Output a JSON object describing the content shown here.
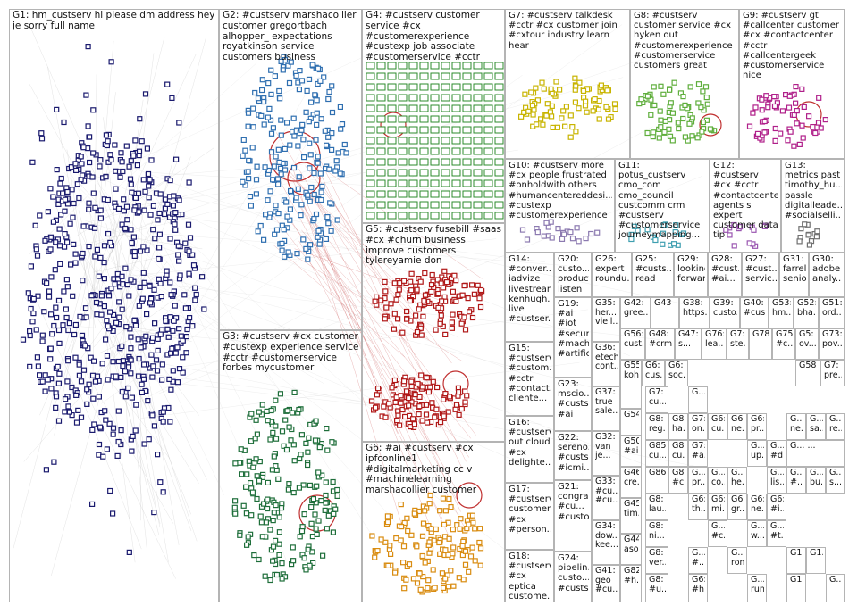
{
  "colors": {
    "g1": "#1a1a6e",
    "g2": "#2f6fb0",
    "g3": "#1e6e3a",
    "g4": "#2e8b2e",
    "g5": "#b01818",
    "g6": "#d98c10",
    "g7": "#c8b400",
    "g8": "#5fae3c",
    "g9": "#b0208a",
    "edge": "#9a9a9a",
    "edge_red": "#c03030"
  },
  "groups": [
    {
      "id": "G1",
      "label": "G1: hm_custserv hi please dm address hey je sorry full name"
    },
    {
      "id": "G2",
      "label": "G2: #custserv marshacollier customer gregortbach alhopper_ expectations royatkinson service customers business"
    },
    {
      "id": "G3",
      "label": "G3: #custserv #cx customer #custexp experience service #cctr #customerservice forbes mycustomer"
    },
    {
      "id": "G4",
      "label": "G4: #custserv customer service #cx #customerexperience #custexp job associate #customerservice #cctr"
    },
    {
      "id": "G5",
      "label": "G5: #custserv fusebill #saas #cx #churn business improve customers tylereyamie don"
    },
    {
      "id": "G6",
      "label": "G6: #ai #custserv #cx ipfconline1 #digitalmarketing cc v #machinelearning marshacollier customer"
    },
    {
      "id": "G7",
      "label": "G7: #custserv talkdesk #cctr #cx customer join #cxtour industry learn hear"
    },
    {
      "id": "G8",
      "label": "G8: #custserv customer service #cx hyken out #customerexperience #customerservice customers great"
    },
    {
      "id": "G9",
      "label": "G9: #custserv gt #callcenter customer #cx #contactcenter #cctr #callcentergeek #customerservice nice"
    },
    {
      "id": "G10",
      "label": "G10: #custserv more #cx people frustrated #onholdwith others #humancentereddesi... #custexp #customerexperience"
    },
    {
      "id": "G11",
      "label": "G11: potus_custserv cmo_com cmo_council custcomm crm #custserv #customerservice journeymapping..."
    },
    {
      "id": "G12",
      "label": "G12: #custserv #cx #cctr #contactcenter agents s expert customer data tip"
    },
    {
      "id": "G13",
      "label": "G13: metrics past timothy_hu... passle digitalleade... #socialselli..."
    },
    {
      "id": "G14",
      "label": "G14: #conver... iadvize livestreamli... kenhugh... live #custser..."
    },
    {
      "id": "G15",
      "label": "G15: #custserv #custom... #cctr #contact... cliente..."
    },
    {
      "id": "G16",
      "label": "G16: #custserv out cloud #cx delighte..."
    },
    {
      "id": "G17",
      "label": "G17: #custserv customer #cx #person..."
    },
    {
      "id": "G18",
      "label": "G18: #custserv #cx eptica custome..."
    },
    {
      "id": "G19",
      "label": "G19: #ai #iot #secur... #mach... #artific..."
    },
    {
      "id": "G20",
      "label": "G20: custo... product listen"
    },
    {
      "id": "G21",
      "label": "G21: congra... #cu... #custo"
    },
    {
      "id": "G22",
      "label": "G22: sereno... #custs... #icmi..."
    },
    {
      "id": "G23",
      "label": "G23: mscio... #custs... #ai"
    },
    {
      "id": "G24",
      "label": "G24: pipelin... custo... #custs..."
    },
    {
      "id": "G25",
      "label": "G25: #custs... read"
    },
    {
      "id": "G26",
      "label": "G26: expert roundu..."
    },
    {
      "id": "G27",
      "label": "G27: #cust... servic..."
    },
    {
      "id": "G28",
      "label": "G28: #cust... #ai..."
    },
    {
      "id": "G29",
      "label": "G29: looking forwar..."
    },
    {
      "id": "G30",
      "label": "G30: adobe analy..."
    },
    {
      "id": "G31",
      "label": "G31: farrel... senio..."
    },
    {
      "id": "G32",
      "label": "G32: van je..."
    },
    {
      "id": "G33",
      "label": "G33: #cu... #cu..."
    },
    {
      "id": "G34",
      "label": "G34: dow... kee..."
    },
    {
      "id": "G35",
      "label": "G35: her... viell..."
    },
    {
      "id": "G36",
      "label": "G36: etech cont..."
    },
    {
      "id": "G37",
      "label": "G37: true sale..."
    },
    {
      "id": "G38",
      "label": "G38: https..."
    },
    {
      "id": "G39",
      "label": "G39: custo..."
    },
    {
      "id": "G40",
      "label": "G40: #cus..."
    },
    {
      "id": "G41",
      "label": "G41: geo #cu..."
    },
    {
      "id": "G42",
      "label": "G42: gree..."
    },
    {
      "id": "G43",
      "label": "G43"
    },
    {
      "id": "G44",
      "label": "G44: aso..."
    },
    {
      "id": "G45",
      "label": "G45: tim..."
    },
    {
      "id": "G46",
      "label": "G46: cre..."
    },
    {
      "id": "G47",
      "label": "G47: s..."
    },
    {
      "id": "G48",
      "label": "G48: #crm..."
    },
    {
      "id": "G50",
      "label": "G50: #ai..."
    },
    {
      "id": "G51",
      "label": "G51: ord..."
    },
    {
      "id": "G52",
      "label": "G52: bha..."
    },
    {
      "id": "G53",
      "label": "G53: hm..."
    },
    {
      "id": "G54",
      "label": "G54"
    },
    {
      "id": "G55",
      "label": "G55: koh"
    },
    {
      "id": "G56",
      "label": "G56: cust..."
    },
    {
      "id": "G58",
      "label": "G58"
    },
    {
      "id": "G73",
      "label": "G73: pov..."
    },
    {
      "id": "G75",
      "label": "G75: #c..."
    },
    {
      "id": "G76",
      "label": "G76: lea..."
    },
    {
      "id": "G78",
      "label": "G78"
    },
    {
      "id": "G82",
      "label": "G82: #h..."
    },
    {
      "id": "G85",
      "label": "G85: cu..."
    },
    {
      "id": "G86",
      "label": "G86"
    },
    {
      "id": "Ga",
      "label": "G7: ste..."
    },
    {
      "id": "Gb",
      "label": "G5: ov..."
    },
    {
      "id": "Gc",
      "label": "G7: pre..."
    },
    {
      "id": "Gd",
      "label": "G6: cus..."
    },
    {
      "id": "Ge",
      "label": "G6: soc..."
    },
    {
      "id": "Gf",
      "label": "G7: cu..."
    },
    {
      "id": "Gg",
      "label": "G5: #ai..."
    },
    {
      "id": "Gh",
      "label": "G8: reg..."
    },
    {
      "id": "Gi",
      "label": "G8: lau..."
    },
    {
      "id": "Gj",
      "label": "G8: ni..."
    },
    {
      "id": "Gk",
      "label": "G8: ver..."
    },
    {
      "id": "Gl",
      "label": "G8: #u..."
    },
    {
      "id": "Gm",
      "label": "G8: ha..."
    },
    {
      "id": "Gn",
      "label": "G8: cu..."
    },
    {
      "id": "Go",
      "label": "G8: #c..."
    },
    {
      "id": "Gp",
      "label": "G7: on..."
    },
    {
      "id": "Gq",
      "label": "G7: #a..."
    },
    {
      "id": "Gr",
      "label": "G6: cu..."
    },
    {
      "id": "Gs",
      "label": "G6: ne..."
    },
    {
      "id": "Gt",
      "label": "G6: pr..."
    },
    {
      "id": "Gu",
      "label": "G6: th..."
    },
    {
      "id": "Gv",
      "label": "G6: mi..."
    },
    {
      "id": "Gw",
      "label": "G6: #h..."
    },
    {
      "id": "Gx",
      "label": "G6: gr..."
    },
    {
      "id": "Gy",
      "label": "G6: ne..."
    },
    {
      "id": "Gz",
      "label": "G6: #i..."
    },
    {
      "id": "H1",
      "label": "G..."
    },
    {
      "id": "H2",
      "label": "G1..."
    },
    {
      "id": "H3",
      "label": "G1..."
    },
    {
      "id": "H4",
      "label": "G1..."
    },
    {
      "id": "H5",
      "label": "G..."
    },
    {
      "id": "H6",
      "label": "G... #t..."
    },
    {
      "id": "H7",
      "label": "G... w..."
    },
    {
      "id": "H8",
      "label": "G... #c..."
    },
    {
      "id": "H9",
      "label": "G... rom..."
    },
    {
      "id": "H10",
      "label": "G... run..."
    },
    {
      "id": "H11",
      "label": "G... #..."
    },
    {
      "id": "H12",
      "label": "G... lis..."
    },
    {
      "id": "H13",
      "label": "G... #..."
    },
    {
      "id": "H14",
      "label": "G... bu..."
    },
    {
      "id": "H15",
      "label": "G... s..."
    },
    {
      "id": "H16",
      "label": "G... ne..."
    },
    {
      "id": "H17",
      "label": "G... sa..."
    },
    {
      "id": "H18",
      "label": "G... re..."
    },
    {
      "id": "H19",
      "label": "G... pr..."
    },
    {
      "id": "H20",
      "label": "G... co..."
    },
    {
      "id": "H21",
      "label": "G... he..."
    },
    {
      "id": "H22",
      "label": "G... up..."
    },
    {
      "id": "H23",
      "label": "G... #d..."
    },
    {
      "id": "H24",
      "label": "G... ..."
    }
  ]
}
